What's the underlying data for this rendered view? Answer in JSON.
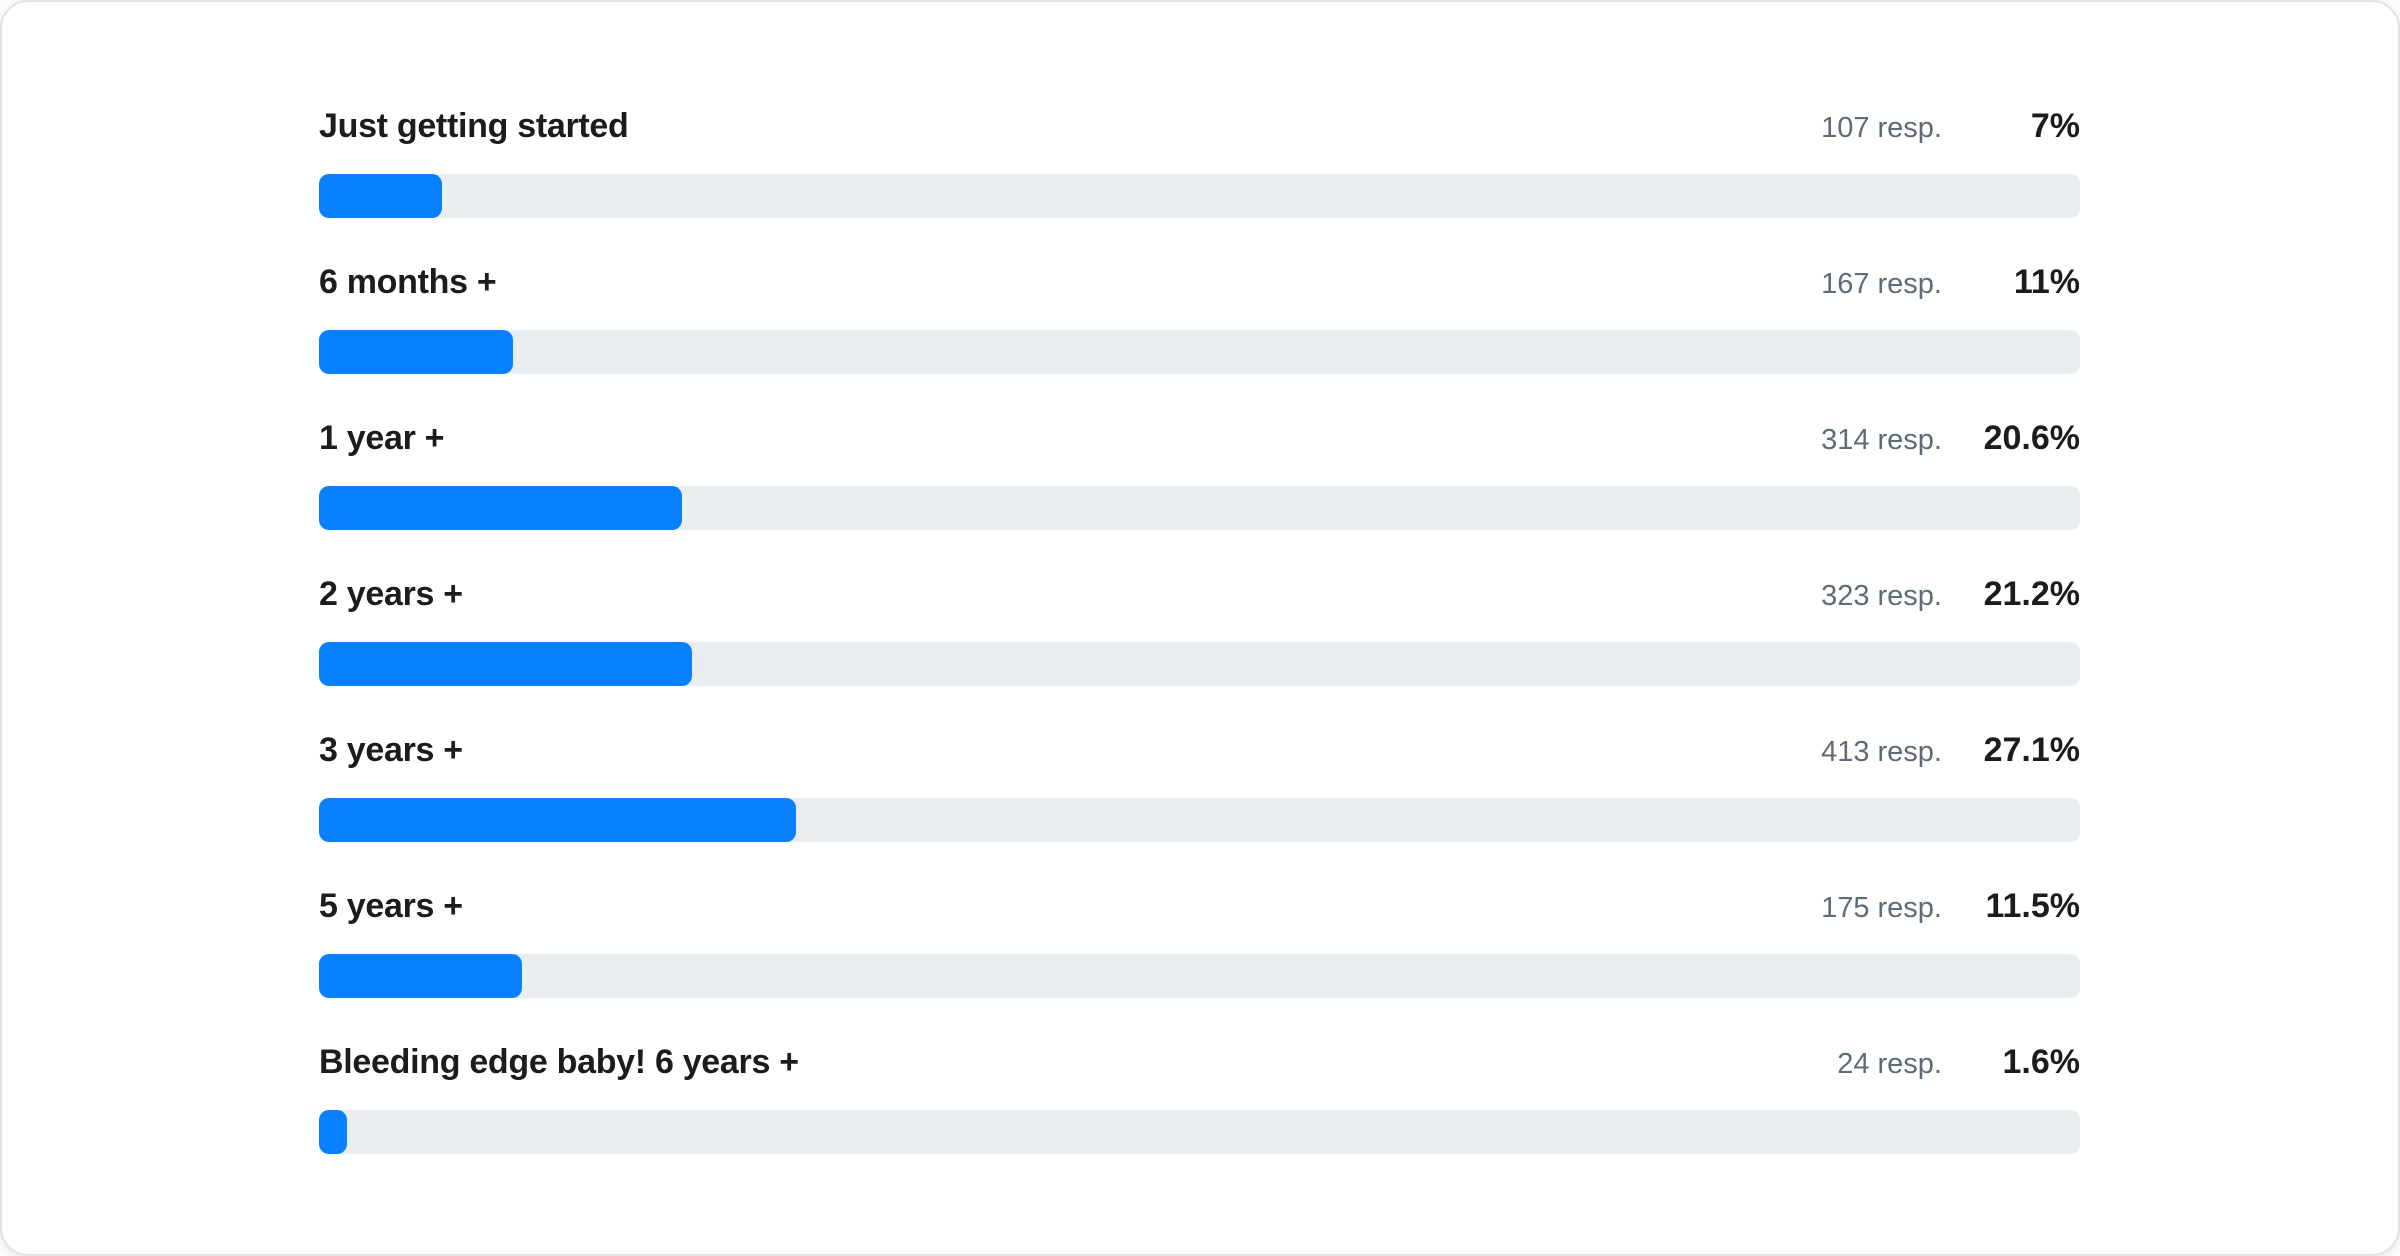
{
  "chart_data": {
    "type": "bar",
    "orientation": "horizontal",
    "title": "",
    "xlabel": "",
    "ylabel": "",
    "xlim": [
      0,
      100
    ],
    "grid": false,
    "legend": false,
    "categories": [
      "Just getting started",
      "6 months +",
      "1 year +",
      "2 years +",
      "3 years +",
      "5 years +",
      "Bleeding edge baby! 6 years +"
    ],
    "values": [
      7,
      11,
      20.6,
      21.2,
      27.1,
      11.5,
      1.6
    ],
    "value_labels": [
      "7%",
      "11%",
      "20.6%",
      "21.2%",
      "27.1%",
      "11.5%",
      "1.6%"
    ],
    "responses": [
      107,
      167,
      314,
      323,
      413,
      175,
      24
    ],
    "response_labels": [
      "107 resp.",
      "167 resp.",
      "314 resp.",
      "323 resp.",
      "413 resp.",
      "175 resp.",
      "24 resp."
    ],
    "colors": {
      "bar_fill": "#0880ff",
      "bar_track": "#e9edf1",
      "label_text": "#1d1c1d",
      "response_text": "#5d6c7b",
      "card_background": "#ffffff",
      "card_border": "#dee3e7"
    }
  }
}
